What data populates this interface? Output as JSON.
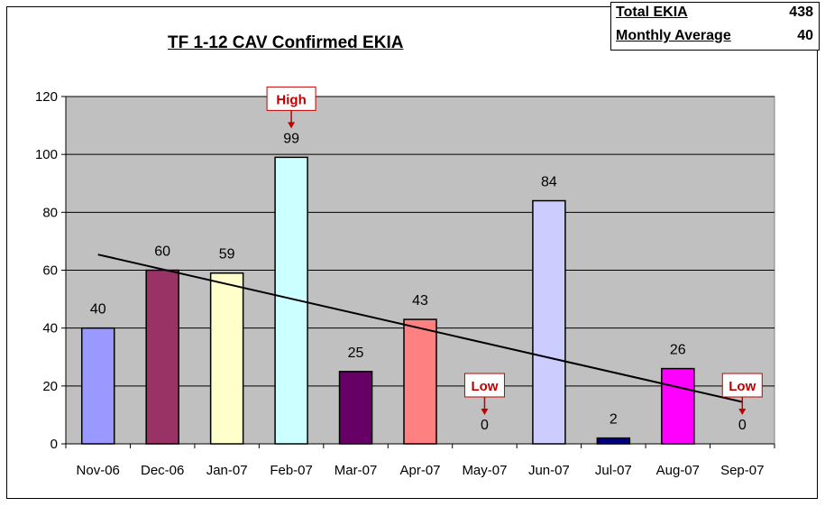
{
  "summary": {
    "total_label": "Total EKIA",
    "total_value": "438",
    "average_label": "Monthly Average",
    "average_value": "40"
  },
  "chart_data": {
    "type": "bar",
    "title": "TF 1-12 CAV Confirmed EKIA",
    "categories": [
      "Nov-06",
      "Dec-06",
      "Jan-07",
      "Feb-07",
      "Mar-07",
      "Apr-07",
      "May-07",
      "Jun-07",
      "Jul-07",
      "Aug-07",
      "Sep-07"
    ],
    "values": [
      40,
      60,
      59,
      99,
      25,
      43,
      0,
      84,
      2,
      26,
      0
    ],
    "bar_colors": [
      "#9999ff",
      "#993366",
      "#ffffcc",
      "#ccffff",
      "#660066",
      "#ff8080",
      "#ffffff",
      "#ccccff",
      "#000080",
      "#ff00ff",
      "#ffffff"
    ],
    "ylim": [
      0,
      120
    ],
    "yticks": [
      0,
      20,
      40,
      60,
      80,
      100,
      120
    ],
    "grid": true,
    "plot_background": "#c0c0c0",
    "trendline": {
      "type": "linear",
      "start": 65.4,
      "end": 14.5,
      "color": "#000000"
    },
    "callouts": [
      {
        "text": "High",
        "category": "Feb-07",
        "color": "#c00000"
      },
      {
        "text": "Low",
        "category": "May-07",
        "color": "#c00000"
      },
      {
        "text": "Low",
        "category": "Sep-07",
        "color": "#c00000"
      }
    ]
  }
}
